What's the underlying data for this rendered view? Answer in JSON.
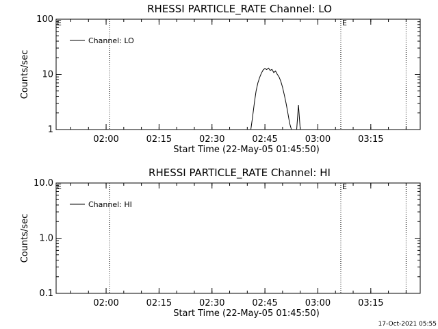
{
  "footer": {
    "timestamp": "17-Oct-2021 05:55"
  },
  "chart_data": [
    {
      "type": "line",
      "title": "RHESSI PARTICLE_RATE Channel: LO",
      "xlabel": "Start Time (22-May-05 01:45:50)",
      "ylabel": "Counts/sec",
      "y_scale": "log",
      "ylim": [
        1,
        100
      ],
      "xlim": [
        "01:45:50",
        "03:29:00"
      ],
      "x_ticks": [
        "02:00",
        "02:15",
        "02:30",
        "02:45",
        "03:00",
        "03:15"
      ],
      "y_ticks": [
        "1",
        "10",
        "100"
      ],
      "legend": {
        "position": "top-left",
        "entries": [
          "Channel: LO"
        ]
      },
      "vlines": [
        {
          "x": "02:01:00",
          "style": "dotted",
          "label": ""
        },
        {
          "x": "03:06:30",
          "style": "dotted",
          "label": "E"
        },
        {
          "x": "03:25:00",
          "style": "dotted",
          "label": ""
        }
      ],
      "edge_markers": [
        "E"
      ],
      "series": [
        {
          "name": "Channel: LO",
          "x": [
            "02:41:00",
            "02:41:30",
            "02:42:00",
            "02:42:30",
            "02:43:00",
            "02:43:30",
            "02:44:00",
            "02:44:30",
            "02:45:00",
            "02:45:30",
            "02:46:00",
            "02:46:30",
            "02:47:00",
            "02:47:30",
            "02:48:00",
            "02:48:30",
            "02:49:00",
            "02:49:30",
            "02:50:00",
            "02:50:30",
            "02:51:00",
            "02:51:30",
            "02:52:00",
            "02:52:30",
            "02:53:00",
            "02:53:30",
            "02:54:00",
            "02:54:30",
            "02:55:00"
          ],
          "values": [
            1.0,
            1.7,
            3.0,
            5.0,
            7.0,
            8.8,
            10.5,
            12.0,
            12.8,
            12.2,
            13.0,
            11.8,
            12.3,
            10.8,
            11.5,
            10.0,
            9.0,
            7.5,
            5.8,
            4.2,
            3.0,
            2.0,
            1.3,
            1.0,
            1.0,
            1.0,
            1.0,
            2.8,
            1.0
          ]
        }
      ]
    },
    {
      "type": "line",
      "title": "RHESSI PARTICLE_RATE Channel: HI",
      "xlabel": "Start Time (22-May-05 01:45:50)",
      "ylabel": "Counts/sec",
      "y_scale": "log",
      "ylim": [
        0.1,
        10.0
      ],
      "xlim": [
        "01:45:50",
        "03:29:00"
      ],
      "x_ticks": [
        "02:00",
        "02:15",
        "02:30",
        "02:45",
        "03:00",
        "03:15"
      ],
      "y_ticks": [
        "0.1",
        "1.0",
        "10.0"
      ],
      "legend": {
        "position": "top-left",
        "entries": [
          "Channel: HI"
        ]
      },
      "vlines": [
        {
          "x": "02:01:00",
          "style": "dotted",
          "label": ""
        },
        {
          "x": "03:06:30",
          "style": "dotted",
          "label": "E"
        },
        {
          "x": "03:25:00",
          "style": "dotted",
          "label": ""
        }
      ],
      "edge_markers": [
        "E"
      ],
      "series": [
        {
          "name": "Channel: HI",
          "x": [],
          "values": []
        }
      ]
    }
  ]
}
